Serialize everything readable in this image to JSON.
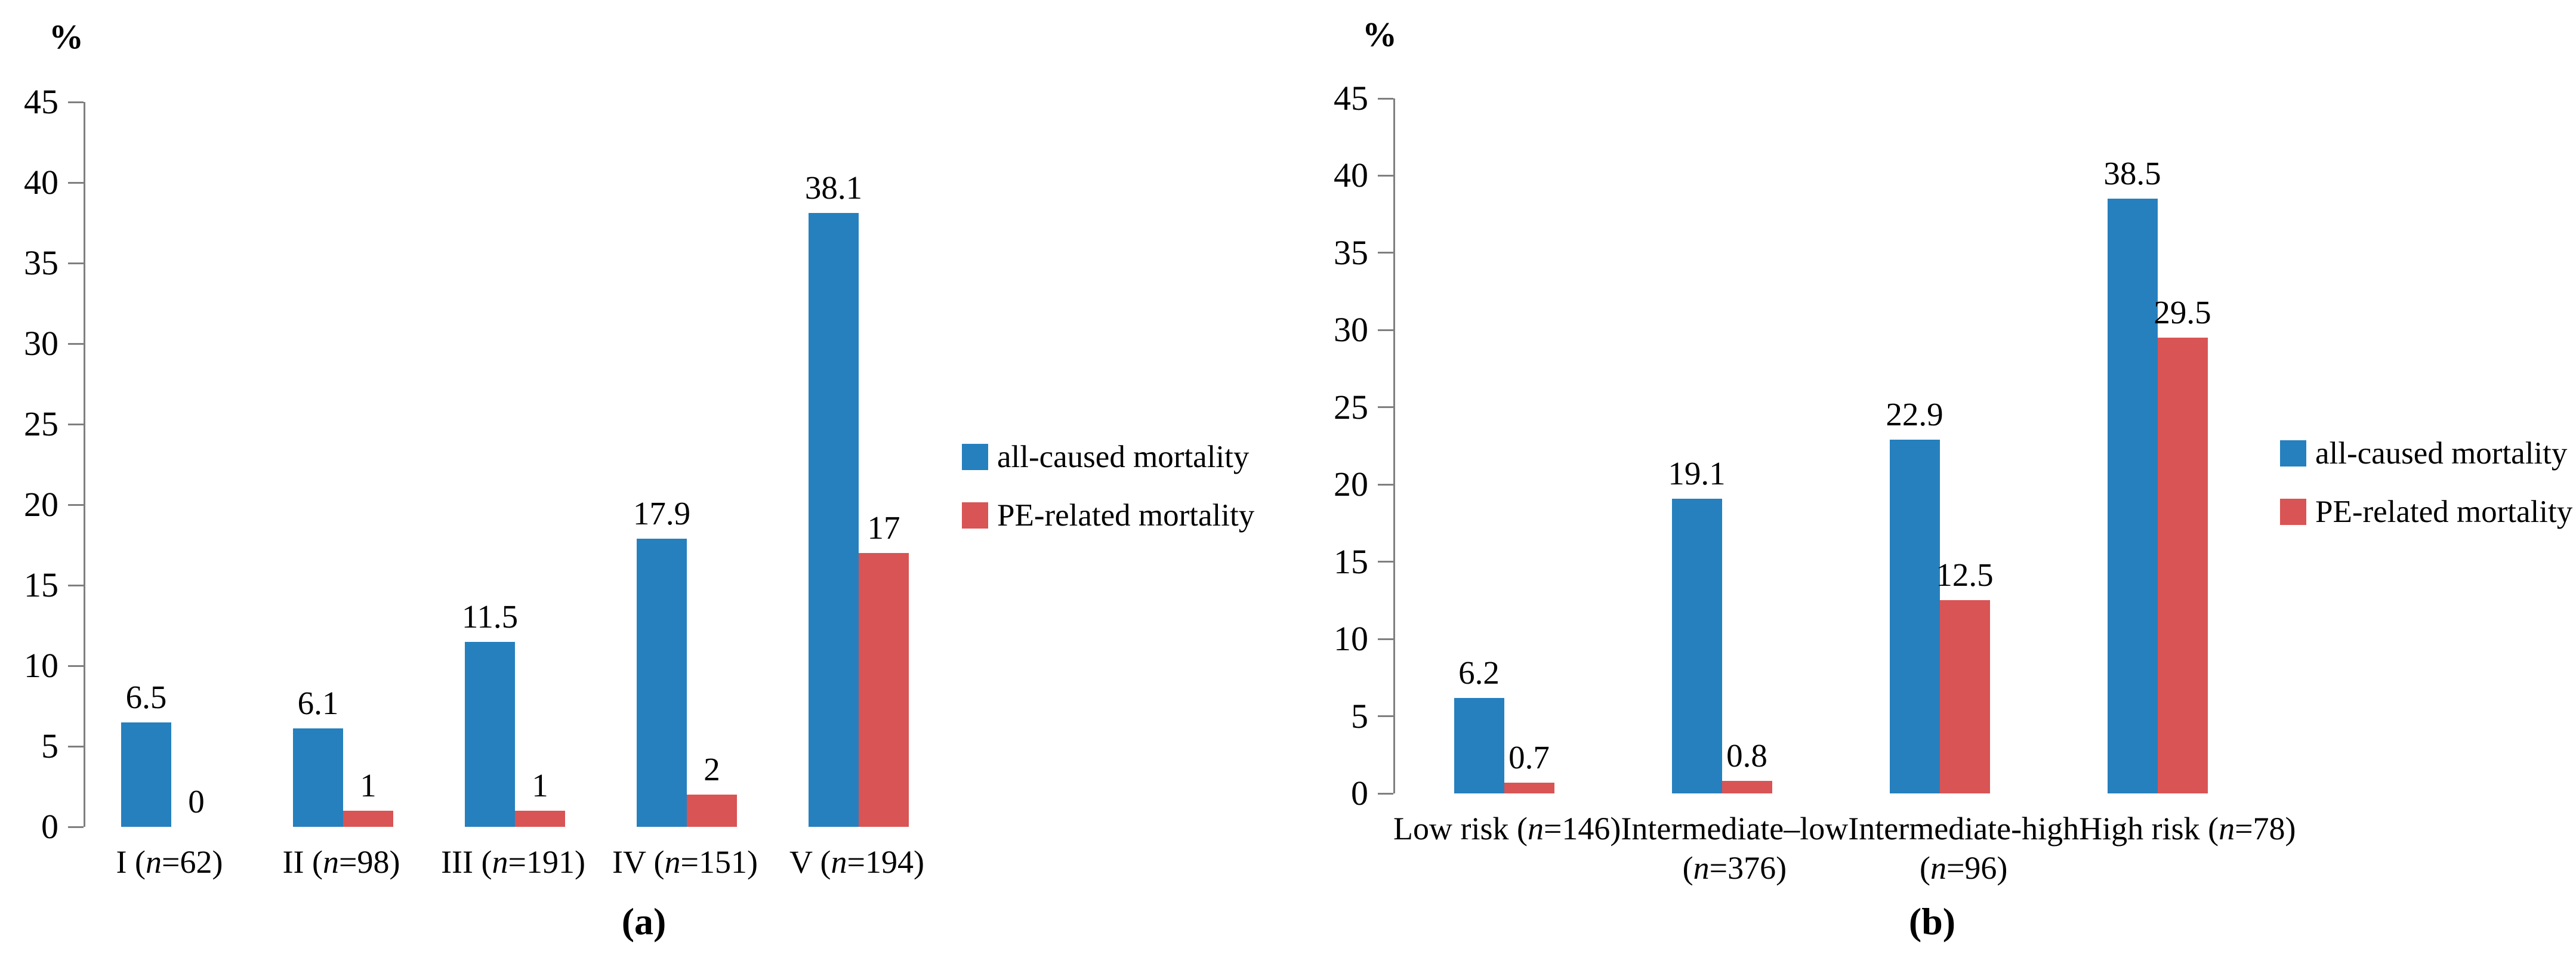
{
  "figure": {
    "background": "#ffffff",
    "axis_color": "#7f7f7f",
    "text_color": "#000000",
    "panel_a_caption": "(a)",
    "panel_b_caption": "(b)"
  },
  "chart_data": [
    {
      "type": "bar",
      "panel_caption": "(a)",
      "title": "",
      "xlabel": "",
      "ylabel": "%",
      "ylim": [
        0,
        45
      ],
      "yticks": [
        0,
        5,
        10,
        15,
        20,
        25,
        30,
        35,
        40,
        45
      ],
      "grid": false,
      "legend_position": "right",
      "categories": [
        "I (n=62)",
        "II (n=98)",
        "III (n=191)",
        "IV (n=151)",
        "V (n=194)"
      ],
      "category_lines": [
        [
          "I (n=62)"
        ],
        [
          "II (n=98)"
        ],
        [
          "III (n=191)"
        ],
        [
          "IV (n=151)"
        ],
        [
          "V (n=194)"
        ]
      ],
      "series": [
        {
          "name": "all-caused mortality",
          "color": "#2680BE",
          "values": [
            6.5,
            6.1,
            11.5,
            17.9,
            38.1
          ],
          "labels": [
            "6.5",
            "6.1",
            "11.5",
            "17.9",
            "38.1"
          ]
        },
        {
          "name": "PE-related mortality",
          "color": "#D95454",
          "values": [
            0,
            1,
            1,
            2,
            17
          ],
          "labels": [
            "0",
            "1",
            "1",
            "2",
            "17"
          ]
        }
      ]
    },
    {
      "type": "bar",
      "panel_caption": "(b)",
      "title": "",
      "xlabel": "",
      "ylabel": "%",
      "ylim": [
        0,
        45
      ],
      "yticks": [
        0,
        5,
        10,
        15,
        20,
        25,
        30,
        35,
        40,
        45
      ],
      "grid": false,
      "legend_position": "right",
      "categories": [
        "Low risk (n=146)",
        "Intermediate–low (n=376)",
        "Intermediate-high (n=96)",
        "High risk (n=78)"
      ],
      "category_lines": [
        [
          "Low risk (n=146)"
        ],
        [
          "Intermediate–low",
          "(n=376)"
        ],
        [
          "Intermediate-high",
          "(n=96)"
        ],
        [
          "High risk (n=78)"
        ]
      ],
      "series": [
        {
          "name": "all-caused mortality",
          "color": "#2680BE",
          "values": [
            6.2,
            19.1,
            22.9,
            38.5
          ],
          "labels": [
            "6.2",
            "19.1",
            "22.9",
            "38.5"
          ]
        },
        {
          "name": "PE-related mortality",
          "color": "#D95454",
          "values": [
            0.7,
            0.8,
            12.5,
            29.5
          ],
          "labels": [
            "0.7",
            "0.8",
            "12.5",
            "29.5"
          ]
        }
      ]
    }
  ]
}
